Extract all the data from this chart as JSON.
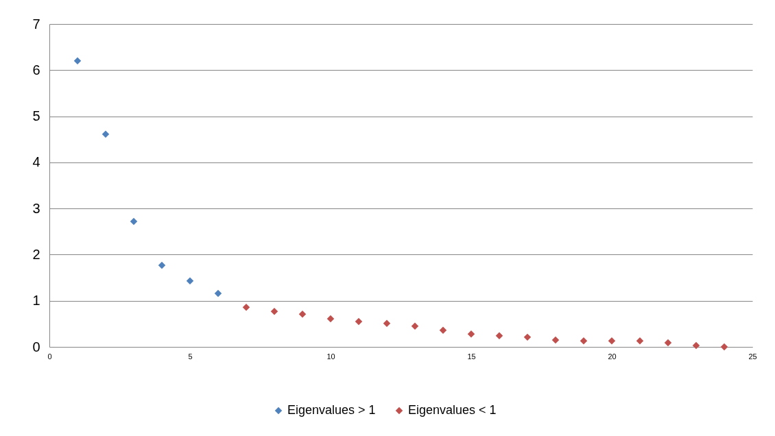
{
  "chart_data": {
    "type": "scatter",
    "xlim": [
      0,
      25
    ],
    "xticks": [
      0,
      5,
      10,
      15,
      20,
      25
    ],
    "ylim": [
      0,
      7
    ],
    "yticks": [
      0,
      1,
      2,
      3,
      4,
      5,
      6,
      7
    ],
    "grid": "y",
    "legend": "bottom",
    "marker": "diamond",
    "series": [
      {
        "name": "Eigenvalues > 1",
        "color": "#4f81bd",
        "x": [
          1,
          2,
          3,
          4,
          5,
          6
        ],
        "values": [
          6.2,
          4.61,
          2.72,
          1.77,
          1.43,
          1.16
        ]
      },
      {
        "name": "Eigenvalues < 1",
        "color": "#c0504d",
        "x": [
          7,
          8,
          9,
          10,
          11,
          12,
          13,
          14,
          15,
          16,
          17,
          18,
          19,
          20,
          21,
          22,
          23,
          24
        ],
        "values": [
          0.86,
          0.77,
          0.71,
          0.61,
          0.55,
          0.51,
          0.45,
          0.36,
          0.28,
          0.24,
          0.21,
          0.15,
          0.13,
          0.13,
          0.13,
          0.09,
          0.03,
          0.0
        ]
      }
    ]
  }
}
